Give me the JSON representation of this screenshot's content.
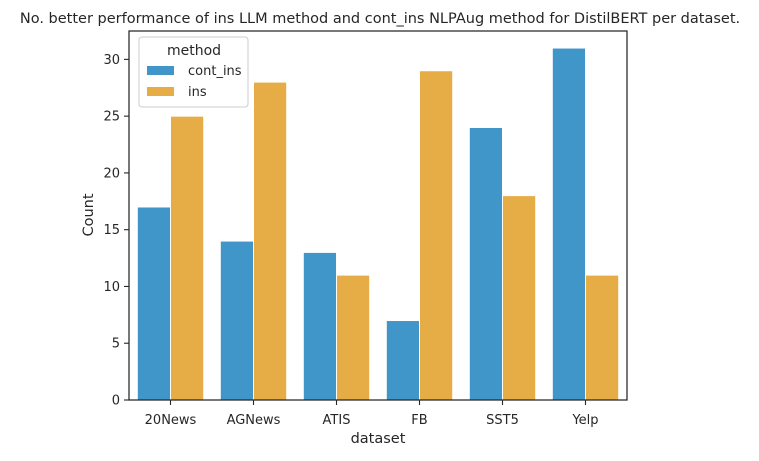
{
  "chart_data": {
    "type": "bar",
    "title": "No. better performance of ins LLM method and cont_ins NLPAug method for DistilBERT per dataset.",
    "xlabel": "dataset",
    "ylabel": "Count",
    "categories": [
      "20News",
      "AGNews",
      "ATIS",
      "FB",
      "SST5",
      "Yelp"
    ],
    "series": [
      {
        "name": "cont_ins",
        "color": "#4196c9",
        "values": [
          17,
          14,
          13,
          7,
          24,
          31
        ]
      },
      {
        "name": "ins",
        "color": "#e6ac45",
        "values": [
          25,
          28,
          11,
          29,
          18,
          11
        ]
      }
    ],
    "ylim": [
      0,
      32.5
    ],
    "yticks": [
      0,
      5,
      10,
      15,
      20,
      25,
      30
    ],
    "legend": {
      "title": "method",
      "placement": "top-left"
    },
    "grid": false
  }
}
